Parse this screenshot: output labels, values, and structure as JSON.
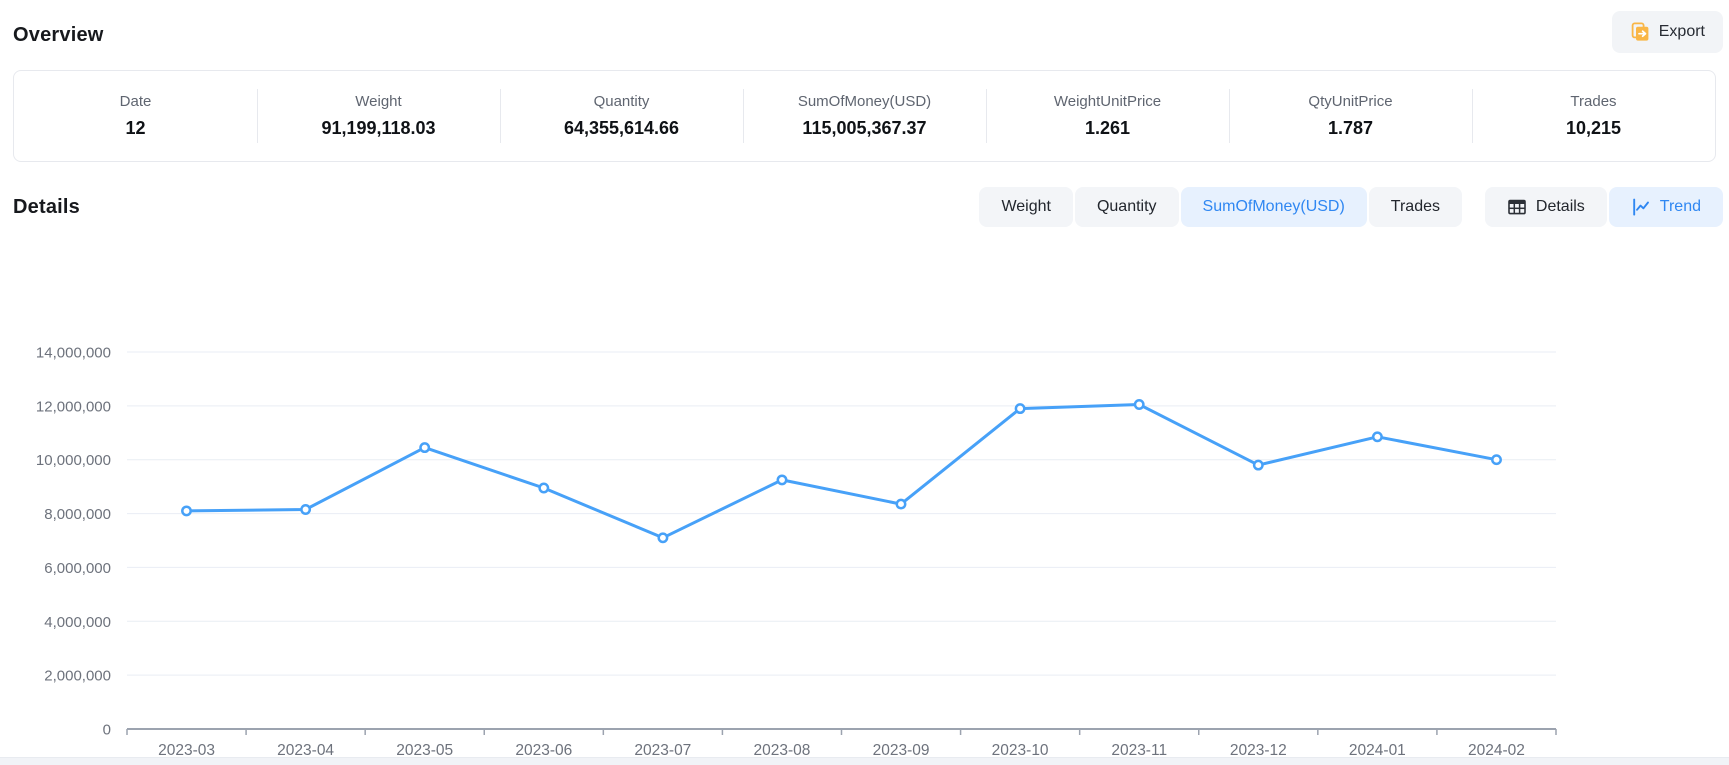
{
  "page": {
    "overview_title": "Overview",
    "details_title": "Details",
    "export_label": "Export"
  },
  "stats": [
    {
      "label": "Date",
      "value": "12"
    },
    {
      "label": "Weight",
      "value": "91,199,118.03"
    },
    {
      "label": "Quantity",
      "value": "64,355,614.66"
    },
    {
      "label": "SumOfMoney(USD)",
      "value": "115,005,367.37"
    },
    {
      "label": "WeightUnitPrice",
      "value": "1.261"
    },
    {
      "label": "QtyUnitPrice",
      "value": "1.787"
    },
    {
      "label": "Trades",
      "value": "10,215"
    }
  ],
  "metric_tabs": [
    {
      "label": "Weight",
      "active": false
    },
    {
      "label": "Quantity",
      "active": false
    },
    {
      "label": "SumOfMoney(USD)",
      "active": true
    },
    {
      "label": "Trades",
      "active": false
    }
  ],
  "view_toggle": [
    {
      "label": "Details",
      "icon": "table-icon",
      "active": false
    },
    {
      "label": "Trend",
      "icon": "trend-icon",
      "active": true
    }
  ],
  "colors": {
    "accent_blue": "#2f87f2",
    "line_blue": "#47a1f8",
    "active_tab_bg": "#e7f1fe",
    "inactive_tab_bg": "#f3f5f8",
    "export_icon_orange": "#f9b646",
    "grid_line": "#e9edf4",
    "axis_line": "#9ca3af",
    "axis_label": "#6d727c"
  },
  "chart_data": {
    "type": "line",
    "title": "",
    "xlabel": "",
    "ylabel": "",
    "x": [
      "2023-03",
      "2023-04",
      "2023-05",
      "2023-06",
      "2023-07",
      "2023-08",
      "2023-09",
      "2023-10",
      "2023-11",
      "2023-12",
      "2024-01",
      "2024-02"
    ],
    "series": [
      {
        "name": "SumOfMoney(USD)",
        "values": [
          8100000,
          8150000,
          10450000,
          8950000,
          7100000,
          9250000,
          8350000,
          11900000,
          12050000,
          9800000,
          10850000,
          10000000
        ]
      }
    ],
    "ylim": [
      0,
      14000000
    ],
    "y_tick_step": 2000000,
    "y_tick_labels": [
      "0",
      "2,000,000",
      "4,000,000",
      "6,000,000",
      "8,000,000",
      "10,000,000",
      "12,000,000",
      "14,000,000"
    ],
    "grid": true,
    "legend_position": "none"
  }
}
